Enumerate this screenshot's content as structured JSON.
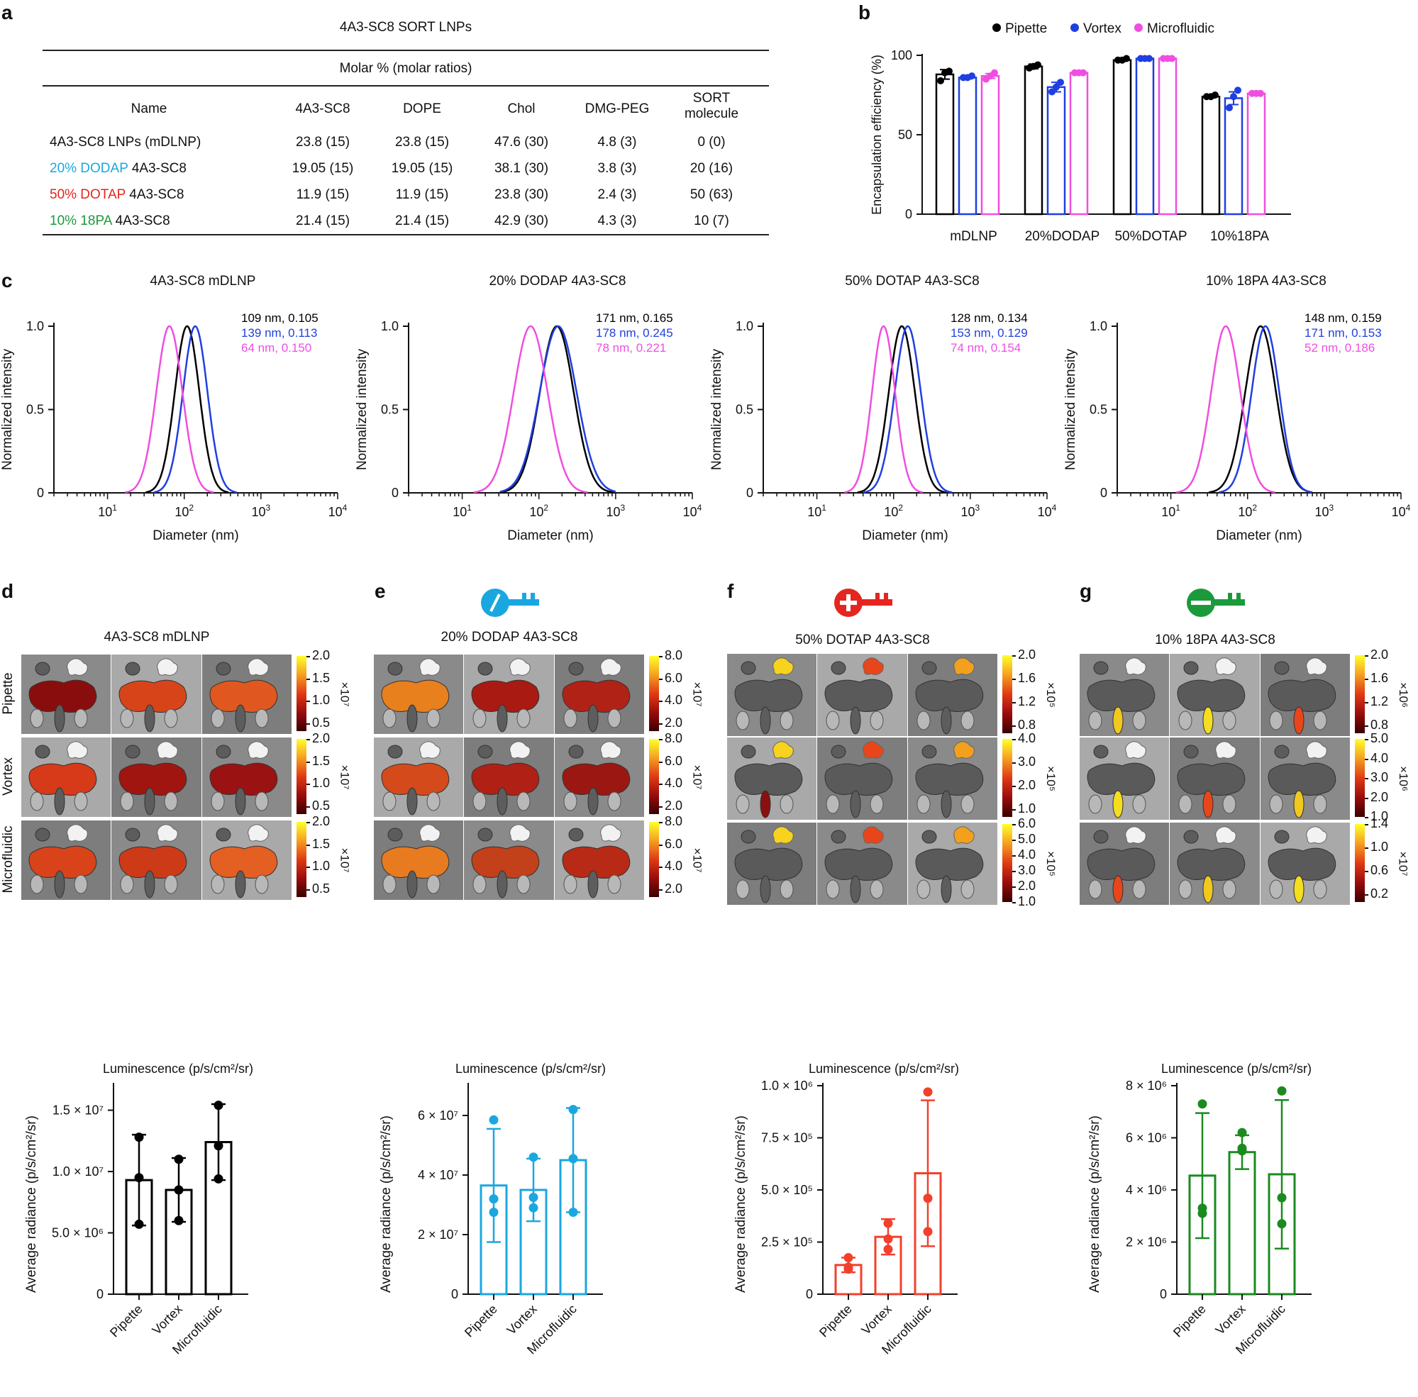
{
  "panel_labels": [
    "a",
    "b",
    "c",
    "d",
    "e",
    "f",
    "g"
  ],
  "table": {
    "title": "4A3-SC8 SORT LNPs",
    "subheader": "Molar % (molar ratios)",
    "columns": [
      "Name",
      "4A3-SC8",
      "DOPE",
      "Chol",
      "DMG-PEG",
      "SORT molecule"
    ],
    "rows": [
      {
        "name_colored": "",
        "name_rest": "4A3-SC8 LNPs (mDLNP)",
        "color": "#111111",
        "cells": [
          "23.8 (15)",
          "23.8 (15)",
          "47.6 (30)",
          "4.8 (3)",
          "0 (0)"
        ]
      },
      {
        "name_colored": "20% DODAP",
        "name_rest": "4A3-SC8",
        "color": "#1aa7e0",
        "cells": [
          "19.05 (15)",
          "19.05 (15)",
          "38.1 (30)",
          "3.8 (3)",
          "20 (16)"
        ]
      },
      {
        "name_colored": "50% DOTAP",
        "name_rest": "4A3-SC8",
        "color": "#e5251f",
        "cells": [
          "11.9 (15)",
          "11.9 (15)",
          "23.8 (30)",
          "2.4 (3)",
          "50 (63)"
        ]
      },
      {
        "name_colored": "10% 18PA",
        "name_rest": "4A3-SC8",
        "color": "#1b9a3c",
        "cells": [
          "21.4 (15)",
          "21.4 (15)",
          "42.9 (30)",
          "4.3 (3)",
          "10 (7)"
        ]
      }
    ]
  },
  "chart_data": [
    {
      "id": "b",
      "type": "bar",
      "ylabel": "Encapsulation efficiency (%)",
      "ylim": [
        0,
        100
      ],
      "yticks": [
        "0",
        "50",
        "100"
      ],
      "categories": [
        "mDLNP",
        "20%DODAP",
        "50%DOTAP",
        "10%18PA"
      ],
      "series": [
        {
          "name": "Pipette",
          "color": "#000000",
          "values": [
            88,
            93,
            97,
            74
          ],
          "errors": [
            3,
            1.5,
            0.8,
            0.8
          ],
          "points": [
            [
              84,
              89,
              90
            ],
            [
              92,
              93,
              94
            ],
            [
              97,
              97,
              98
            ],
            [
              74,
              74,
              75
            ]
          ]
        },
        {
          "name": "Vortex",
          "color": "#1f3fe0",
          "values": [
            86,
            80,
            98,
            73
          ],
          "errors": [
            0.8,
            3,
            0.5,
            4
          ],
          "points": [
            [
              86,
              86,
              87
            ],
            [
              77,
              80,
              83
            ],
            [
              98,
              98,
              98
            ],
            [
              67,
              74,
              78
            ]
          ]
        },
        {
          "name": "Microfluidic",
          "color": "#f04ee0",
          "values": [
            87,
            89,
            98,
            76
          ],
          "errors": [
            1.5,
            0.5,
            0.5,
            0.5
          ],
          "points": [
            [
              85,
              87,
              89
            ],
            [
              89,
              89,
              89
            ],
            [
              98,
              98,
              98
            ],
            [
              76,
              76,
              76
            ]
          ]
        }
      ]
    },
    {
      "id": "c1",
      "type": "line",
      "title": "4A3-SC8 mDLNP",
      "xlabel": "Diameter (nm)",
      "ylabel": "Normalized intensity",
      "xscale": "log",
      "xlim": [
        2,
        10000
      ],
      "ylim": [
        0,
        1.0
      ],
      "yticks": [
        "0",
        "0.5",
        "1.0"
      ],
      "peaks": [
        {
          "center": 109,
          "width": 0.16,
          "color": "#000000"
        },
        {
          "center": 139,
          "width": 0.16,
          "color": "#1f3fe0"
        },
        {
          "center": 64,
          "width": 0.17,
          "color": "#f04ee0"
        }
      ],
      "annotations": [
        {
          "text": "109 nm, 0.105",
          "color": "#000000"
        },
        {
          "text": "139 nm, 0.113",
          "color": "#1f3fe0"
        },
        {
          "text": "64 nm, 0.150",
          "color": "#f04ee0"
        }
      ]
    },
    {
      "id": "c2",
      "type": "line",
      "title": "20% DODAP 4A3-SC8",
      "xlabel": "Diameter (nm)",
      "ylabel": "Normalized intensity",
      "xscale": "log",
      "xlim": [
        2,
        10000
      ],
      "ylim": [
        0,
        1.0
      ],
      "yticks": [
        "0",
        "0.5",
        "1.0"
      ],
      "peaks": [
        {
          "center": 171,
          "width": 0.22,
          "color": "#000000"
        },
        {
          "center": 178,
          "width": 0.24,
          "color": "#1f3fe0"
        },
        {
          "center": 78,
          "width": 0.22,
          "color": "#f04ee0"
        }
      ],
      "annotations": [
        {
          "text": "171 nm, 0.165",
          "color": "#000000"
        },
        {
          "text": "178 nm, 0.245",
          "color": "#1f3fe0"
        },
        {
          "text": "78 nm, 0.221",
          "color": "#f04ee0"
        }
      ]
    },
    {
      "id": "c3",
      "type": "line",
      "title": "50% DOTAP 4A3-SC8",
      "xlabel": "Diameter (nm)",
      "ylabel": "Normalized intensity",
      "xscale": "log",
      "xlim": [
        2,
        10000
      ],
      "ylim": [
        0,
        1.0
      ],
      "yticks": [
        "0",
        "0.5",
        "1.0"
      ],
      "peaks": [
        {
          "center": 128,
          "width": 0.17,
          "color": "#000000"
        },
        {
          "center": 153,
          "width": 0.17,
          "color": "#1f3fe0"
        },
        {
          "center": 74,
          "width": 0.15,
          "color": "#f04ee0"
        }
      ],
      "annotations": [
        {
          "text": "128 nm, 0.134",
          "color": "#000000"
        },
        {
          "text": "153 nm, 0.129",
          "color": "#1f3fe0"
        },
        {
          "text": "74 nm, 0.154",
          "color": "#f04ee0"
        }
      ]
    },
    {
      "id": "c4",
      "type": "line",
      "title": "10% 18PA 4A3-SC8",
      "xlabel": "Diameter (nm)",
      "ylabel": "Normalized intensity",
      "xscale": "log",
      "xlim": [
        2,
        10000
      ],
      "ylim": [
        0,
        1.0
      ],
      "yticks": [
        "0",
        "0.5",
        "1.0"
      ],
      "peaks": [
        {
          "center": 148,
          "width": 0.2,
          "color": "#000000"
        },
        {
          "center": 171,
          "width": 0.18,
          "color": "#1f3fe0"
        },
        {
          "center": 52,
          "width": 0.19,
          "color": "#f04ee0"
        }
      ],
      "annotations": [
        {
          "text": "148 nm, 0.159",
          "color": "#000000"
        },
        {
          "text": "171 nm, 0.153",
          "color": "#1f3fe0"
        },
        {
          "text": "52 nm, 0.186",
          "color": "#f04ee0"
        }
      ]
    },
    {
      "id": "d_bar",
      "type": "bar",
      "color": "#000000",
      "ylabel": "Average radiance (p/s/cm²/sr)",
      "categories": [
        "Pipette",
        "Vortex",
        "Microfluidic"
      ],
      "ylim": [
        0,
        17000000
      ],
      "yticks": [
        {
          "v": 0,
          "label": "0"
        },
        {
          "v": 5000000,
          "label": "5.0 × 10⁶"
        },
        {
          "v": 10000000,
          "label": "1.0 × 10⁷"
        },
        {
          "v": 15000000,
          "label": "1.5 × 10⁷"
        }
      ],
      "values": [
        9300000,
        8500000,
        12400000
      ],
      "errors": [
        3700000,
        2600000,
        3100000
      ],
      "points": [
        [
          12800000,
          9500000,
          5700000
        ],
        [
          11000000,
          8500000,
          6000000
        ],
        [
          15400000,
          12100000,
          9400000
        ]
      ]
    },
    {
      "id": "e_bar",
      "type": "bar",
      "color": "#1aa7e0",
      "ylabel": "Average radiance (p/s/cm²/sr)",
      "categories": [
        "Pipette",
        "Vortex",
        "Microfluidic"
      ],
      "ylim": [
        0,
        70000000
      ],
      "yticks": [
        {
          "v": 0,
          "label": "0"
        },
        {
          "v": 20000000,
          "label": "2 × 10⁷"
        },
        {
          "v": 40000000,
          "label": "4 × 10⁷"
        },
        {
          "v": 60000000,
          "label": "6 × 10⁷"
        }
      ],
      "values": [
        36500000,
        35000000,
        45000000
      ],
      "errors": [
        19000000,
        10500000,
        17500000
      ],
      "points": [
        [
          58500000,
          32000000,
          27500000
        ],
        [
          46000000,
          32500000,
          29000000
        ],
        [
          62000000,
          45500000,
          27500000
        ]
      ]
    },
    {
      "id": "f_bar",
      "type": "bar",
      "color": "#f2402c",
      "ylabel": "Average radiance (p/s/cm²/sr)",
      "categories": [
        "Pipette",
        "Vortex",
        "Microfluidic"
      ],
      "ylim": [
        0,
        1000000
      ],
      "yticks": [
        {
          "v": 0,
          "label": "0"
        },
        {
          "v": 250000,
          "label": "2.5 × 10⁵"
        },
        {
          "v": 500000,
          "label": "5.0 × 10⁵"
        },
        {
          "v": 750000,
          "label": "7.5 × 10⁵"
        },
        {
          "v": 1000000,
          "label": "1.0 × 10⁶"
        }
      ],
      "values": [
        140000,
        275000,
        580000
      ],
      "errors": [
        35000,
        85000,
        350000
      ],
      "points": [
        [
          175000,
          130000,
          120000
        ],
        [
          340000,
          265000,
          215000
        ],
        [
          970000,
          460000,
          300000
        ]
      ]
    },
    {
      "id": "g_bar",
      "type": "bar",
      "color": "#1b8a1f",
      "ylabel": "Average radiance (p/s/cm²/sr)",
      "categories": [
        "Pipette",
        "Vortex",
        "Microfluidic"
      ],
      "ylim": [
        0,
        8000000
      ],
      "yticks": [
        {
          "v": 0,
          "label": "0"
        },
        {
          "v": 2000000,
          "label": "2 × 10⁶"
        },
        {
          "v": 4000000,
          "label": "4 × 10⁶"
        },
        {
          "v": 6000000,
          "label": "6 × 10⁶"
        },
        {
          "v": 8000000,
          "label": "8 × 10⁶"
        }
      ],
      "values": [
        4550000,
        5450000,
        4600000
      ],
      "errors": [
        2400000,
        650000,
        2850000
      ],
      "points": [
        [
          7300000,
          3300000,
          3100000
        ],
        [
          6200000,
          5600000,
          5500000
        ],
        [
          7800000,
          3700000,
          2700000
        ]
      ]
    }
  ],
  "imaging": {
    "row_labels": [
      "Pipette",
      "Vortex",
      "Microfluidic"
    ],
    "luminescence_label": "Luminescence (p/s/cm²/sr)",
    "panels": [
      {
        "id": "d",
        "title": "4A3-SC8 mDLNP",
        "key": "none",
        "scales": [
          {
            "ticks": [
              "2.0",
              "1.5",
              "1.0",
              "0.5"
            ],
            "mult": "×10⁷"
          },
          {
            "ticks": [
              "2.0",
              "1.5",
              "1.0",
              "0.5"
            ],
            "mult": "×10⁷"
          },
          {
            "ticks": [
              "2.0",
              "1.5",
              "1.0",
              "0.5"
            ],
            "mult": "×10⁷"
          }
        ]
      },
      {
        "id": "e",
        "title": "20% DODAP 4A3-SC8",
        "key": "neutral",
        "key_color": "#1aa7e0",
        "scales": [
          {
            "ticks": [
              "8.0",
              "6.0",
              "4.0",
              "2.0"
            ],
            "mult": "×10⁷"
          },
          {
            "ticks": [
              "8.0",
              "6.0",
              "4.0",
              "2.0"
            ],
            "mult": "×10⁷"
          },
          {
            "ticks": [
              "8.0",
              "6.0",
              "4.0",
              "2.0"
            ],
            "mult": "×10⁷"
          }
        ]
      },
      {
        "id": "f",
        "title": "50% DOTAP 4A3-SC8",
        "key": "plus",
        "key_color": "#e5251f",
        "scales": [
          {
            "ticks": [
              "2.0",
              "1.6",
              "1.2",
              "0.8"
            ],
            "mult": "×10⁵"
          },
          {
            "ticks": [
              "4.0",
              "3.0",
              "2.0",
              "1.0"
            ],
            "mult": "×10⁵"
          },
          {
            "ticks": [
              "6.0",
              "5.0",
              "4.0",
              "3.0",
              "2.0",
              "1.0"
            ],
            "mult": "×10⁵"
          }
        ]
      },
      {
        "id": "g",
        "title": "10% 18PA 4A3-SC8",
        "key": "minus",
        "key_color": "#1b9a3c",
        "scales": [
          {
            "ticks": [
              "2.0",
              "1.6",
              "1.2",
              "0.8"
            ],
            "mult": "×10⁶"
          },
          {
            "ticks": [
              "5.0",
              "4.0",
              "3.0",
              "2.0",
              "1.0"
            ],
            "mult": "×10⁶"
          },
          {
            "ticks": [
              "1.4",
              "1.0",
              "0.6",
              "0.2"
            ],
            "mult": "×10⁷"
          }
        ]
      }
    ]
  }
}
